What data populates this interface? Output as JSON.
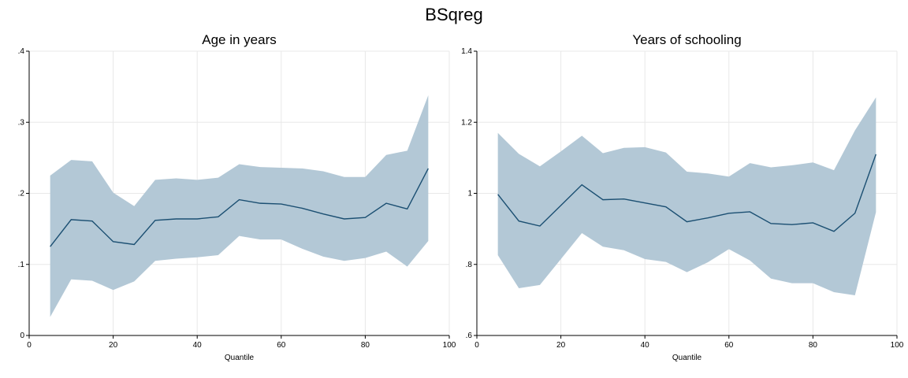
{
  "title": "BSqreg",
  "chart_data": [
    {
      "type": "line",
      "title": "Age in years",
      "xlabel": "Quantile",
      "ylabel": "",
      "xlim": [
        0,
        100
      ],
      "ylim": [
        0,
        0.4
      ],
      "xticks": [
        0,
        20,
        40,
        60,
        80,
        100
      ],
      "xtick_labels": [
        "0",
        "20",
        "40",
        "60",
        "80",
        "100"
      ],
      "yticks": [
        0,
        0.1,
        0.2,
        0.3,
        0.4
      ],
      "ytick_labels": [
        "0",
        ".1",
        ".2",
        ".3",
        ".4"
      ],
      "grid": true,
      "x": [
        5,
        10,
        15,
        20,
        25,
        30,
        35,
        40,
        45,
        50,
        55,
        60,
        65,
        70,
        75,
        80,
        85,
        90,
        95
      ],
      "series": [
        {
          "values": [
            0.125,
            0.163,
            0.161,
            0.132,
            0.128,
            0.162,
            0.164,
            0.164,
            0.167,
            0.191,
            0.186,
            0.185,
            0.179,
            0.171,
            0.164,
            0.166,
            0.186,
            0.178,
            0.235
          ],
          "lower": [
            0.026,
            0.079,
            0.077,
            0.064,
            0.076,
            0.105,
            0.108,
            0.11,
            0.113,
            0.14,
            0.135,
            0.135,
            0.122,
            0.111,
            0.105,
            0.109,
            0.118,
            0.097,
            0.133
          ],
          "upper": [
            0.225,
            0.247,
            0.245,
            0.201,
            0.182,
            0.219,
            0.221,
            0.219,
            0.222,
            0.241,
            0.237,
            0.236,
            0.235,
            0.231,
            0.223,
            0.223,
            0.254,
            0.26,
            0.338
          ]
        }
      ]
    },
    {
      "type": "line",
      "title": "Years of schooling",
      "xlabel": "Quantile",
      "ylabel": "",
      "xlim": [
        0,
        100
      ],
      "ylim": [
        0.6,
        1.4
      ],
      "xticks": [
        0,
        20,
        40,
        60,
        80,
        100
      ],
      "xtick_labels": [
        "0",
        "20",
        "40",
        "60",
        "80",
        "100"
      ],
      "yticks": [
        0.6,
        0.8,
        1.0,
        1.2,
        1.4
      ],
      "ytick_labels": [
        ".6",
        ".8",
        "1",
        "1.2",
        "1.4"
      ],
      "grid": true,
      "x": [
        5,
        10,
        15,
        20,
        25,
        30,
        35,
        40,
        45,
        50,
        55,
        60,
        65,
        70,
        75,
        80,
        85,
        90,
        95
      ],
      "series": [
        {
          "values": [
            0.997,
            0.922,
            0.908,
            0.966,
            1.024,
            0.982,
            0.984,
            0.973,
            0.962,
            0.92,
            0.931,
            0.944,
            0.948,
            0.915,
            0.912,
            0.917,
            0.893,
            0.944,
            1.11
          ],
          "lower": [
            0.826,
            0.733,
            0.742,
            0.815,
            0.888,
            0.85,
            0.84,
            0.815,
            0.807,
            0.778,
            0.806,
            0.843,
            0.811,
            0.76,
            0.747,
            0.747,
            0.722,
            0.713,
            0.947
          ],
          "upper": [
            1.17,
            1.111,
            1.076,
            1.118,
            1.162,
            1.113,
            1.128,
            1.13,
            1.115,
            1.061,
            1.056,
            1.047,
            1.085,
            1.073,
            1.079,
            1.087,
            1.065,
            1.177,
            1.27
          ]
        }
      ]
    }
  ],
  "colors": {
    "band": "#b3c8d6",
    "line": "#1b4f72",
    "grid": "#e8e8e8",
    "axis": "#000000"
  }
}
